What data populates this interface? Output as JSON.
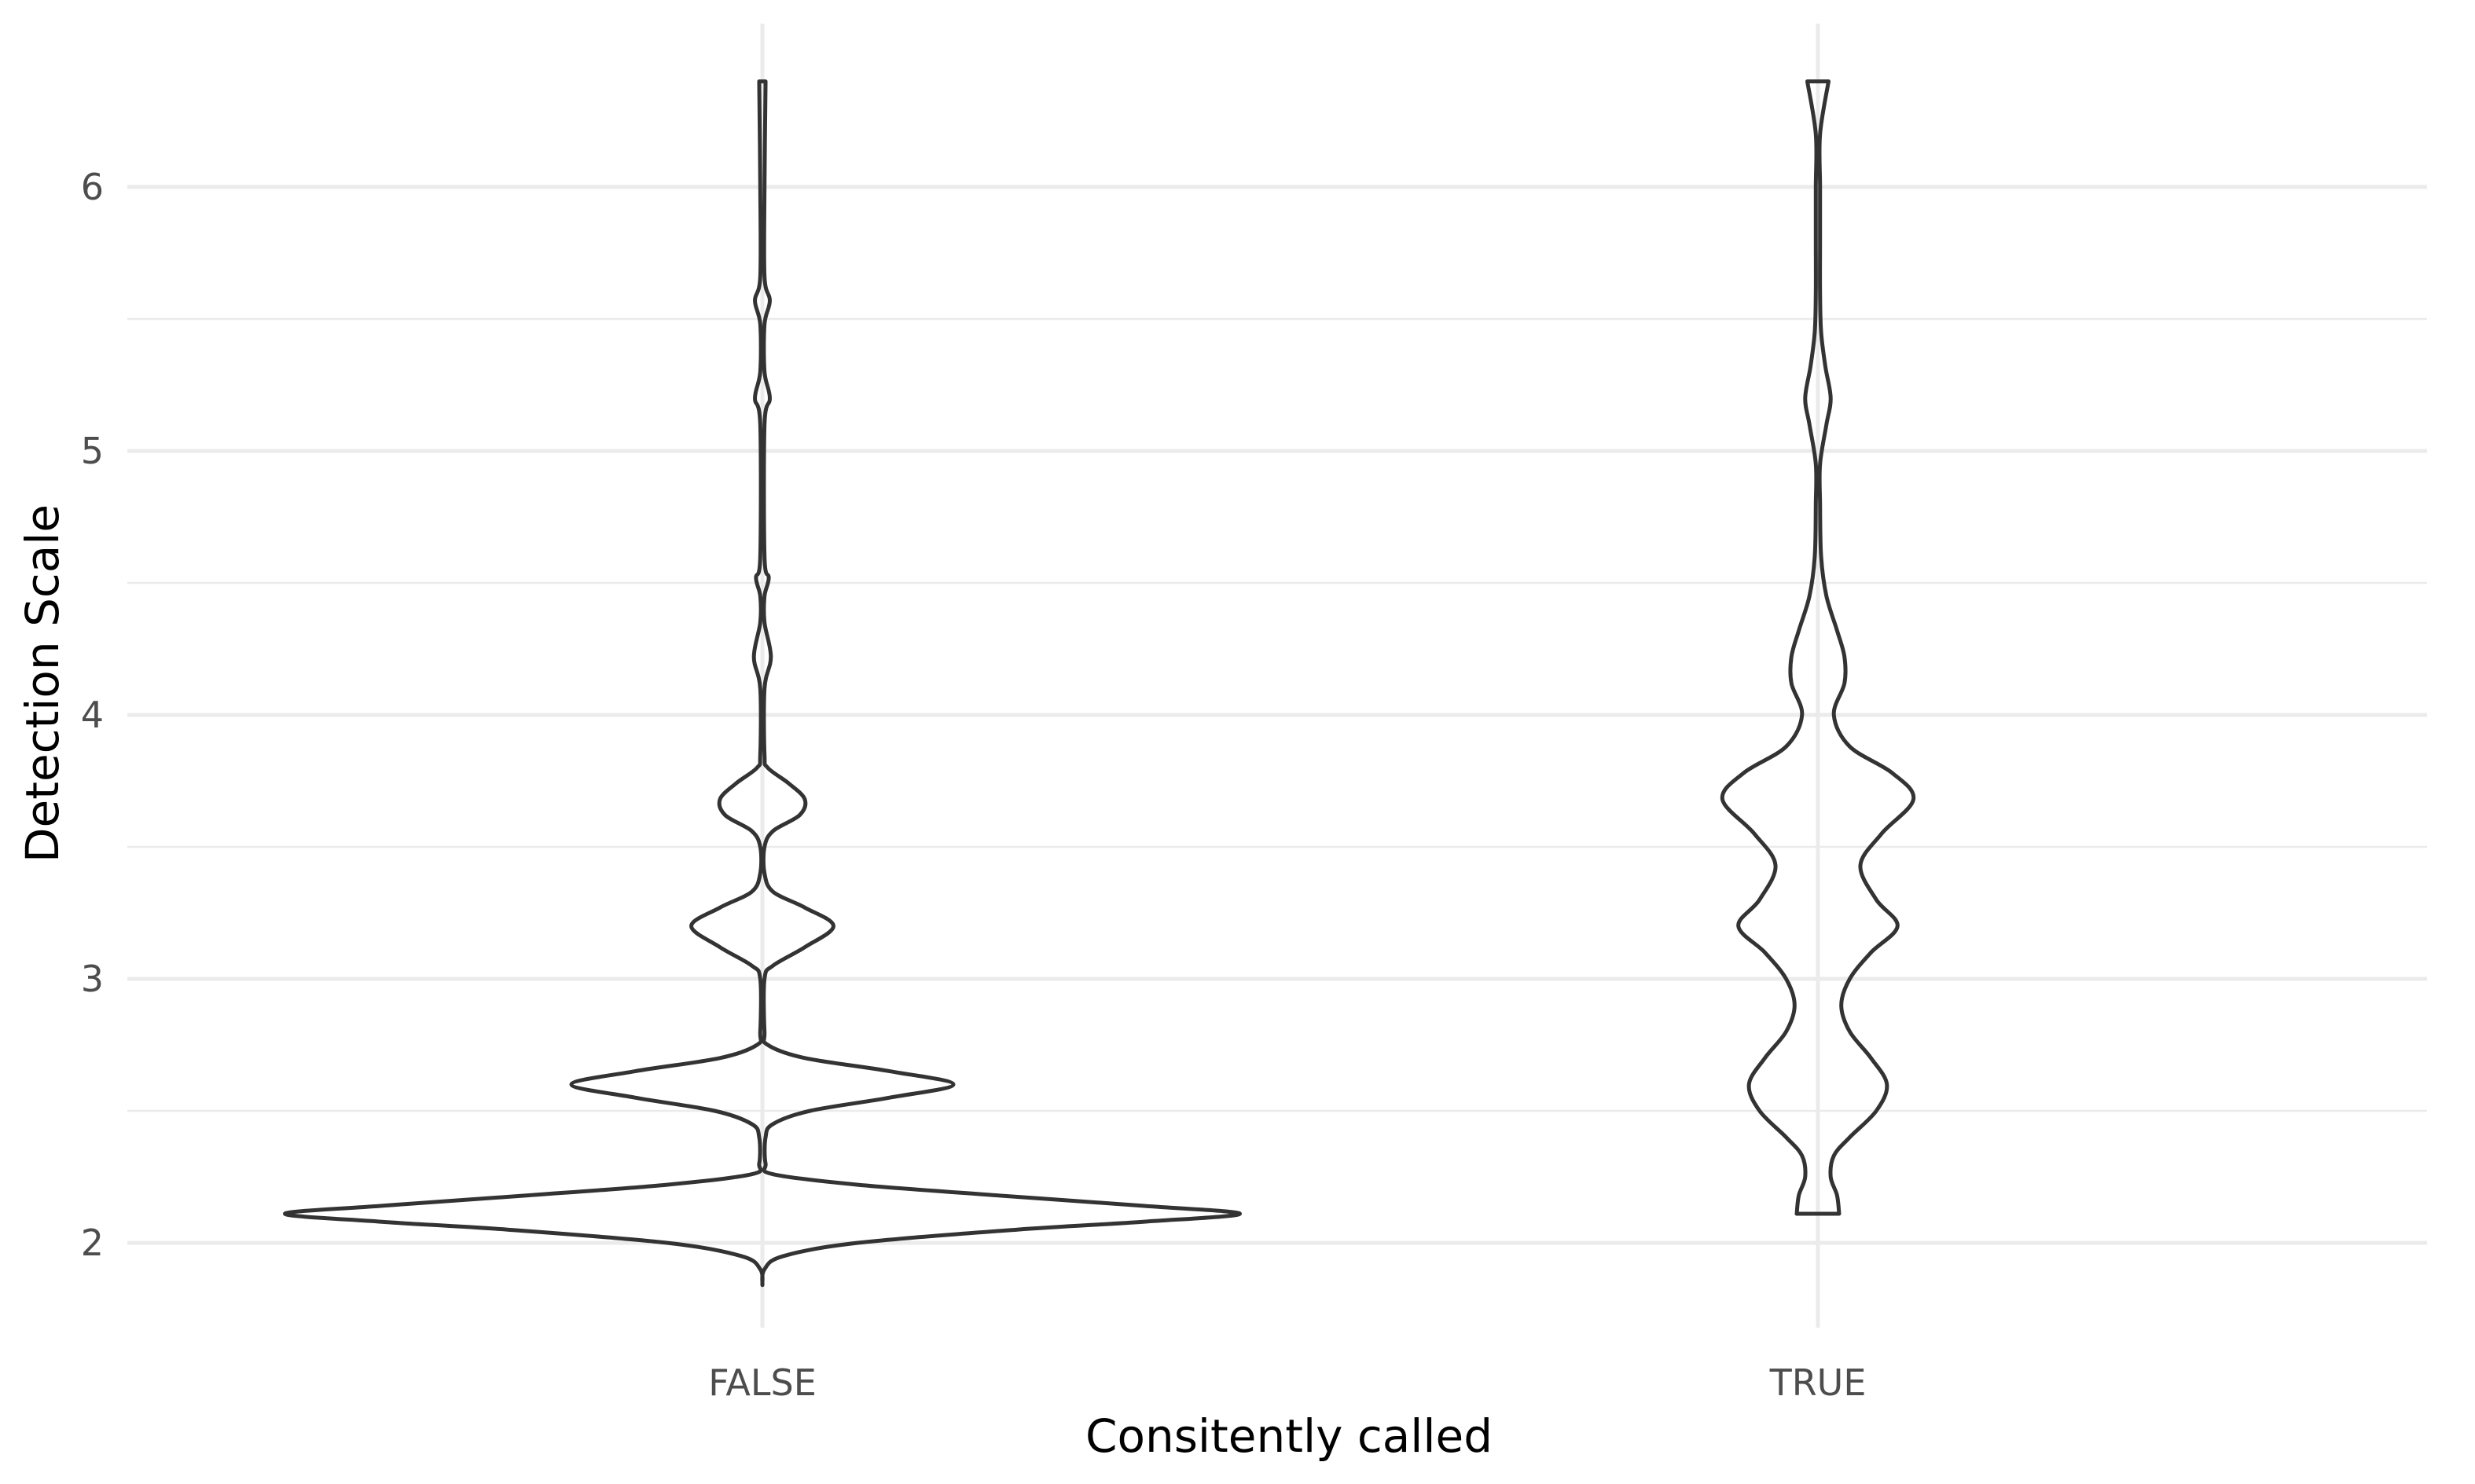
{
  "chart_data": {
    "type": "violin",
    "title": "",
    "xlabel": "Consitently called",
    "ylabel": "Detection Scale",
    "categories": [
      "FALSE",
      "TRUE"
    ],
    "ylim": [
      1.7,
      6.5
    ],
    "yticks": [
      2,
      3,
      4,
      5,
      6
    ],
    "grid": true,
    "legend": "none",
    "colors": {
      "outline": "#333333",
      "grid": "#ebebeb",
      "tick_text": "#4d4d4d",
      "title_text": "#000000"
    },
    "series": [
      {
        "category": "FALSE",
        "y_range": [
          1.84,
          6.4
        ],
        "half_width": [
          [
            1.84,
            0.0
          ],
          [
            1.9,
            0.002
          ],
          [
            1.95,
            0.02
          ],
          [
            2.0,
            0.09
          ],
          [
            2.05,
            0.24
          ],
          [
            2.08,
            0.36
          ],
          [
            2.11,
            0.45
          ],
          [
            2.14,
            0.36
          ],
          [
            2.18,
            0.22
          ],
          [
            2.22,
            0.09
          ],
          [
            2.26,
            0.01
          ],
          [
            2.3,
            0.003
          ],
          [
            2.4,
            0.003
          ],
          [
            2.45,
            0.01
          ],
          [
            2.5,
            0.045
          ],
          [
            2.55,
            0.12
          ],
          [
            2.6,
            0.18
          ],
          [
            2.65,
            0.12
          ],
          [
            2.7,
            0.04
          ],
          [
            2.75,
            0.005
          ],
          [
            2.8,
            0.002
          ],
          [
            3.0,
            0.002
          ],
          [
            3.05,
            0.01
          ],
          [
            3.12,
            0.04
          ],
          [
            3.2,
            0.067
          ],
          [
            3.27,
            0.04
          ],
          [
            3.33,
            0.01
          ],
          [
            3.4,
            0.002
          ],
          [
            3.5,
            0.002
          ],
          [
            3.56,
            0.01
          ],
          [
            3.62,
            0.035
          ],
          [
            3.68,
            0.04
          ],
          [
            3.74,
            0.025
          ],
          [
            3.8,
            0.005
          ],
          [
            3.85,
            0.002
          ],
          [
            4.1,
            0.002
          ],
          [
            4.22,
            0.008
          ],
          [
            4.35,
            0.002
          ],
          [
            4.45,
            0.002
          ],
          [
            4.52,
            0.006
          ],
          [
            4.6,
            0.002
          ],
          [
            5.1,
            0.002
          ],
          [
            5.2,
            0.007
          ],
          [
            5.3,
            0.002
          ],
          [
            5.48,
            0.002
          ],
          [
            5.57,
            0.007
          ],
          [
            5.66,
            0.002
          ],
          [
            6.0,
            0.002
          ],
          [
            6.4,
            0.003
          ]
        ]
      },
      {
        "category": "TRUE",
        "y_range": [
          2.11,
          6.4
        ],
        "half_width": [
          [
            2.11,
            0.02
          ],
          [
            2.18,
            0.018
          ],
          [
            2.25,
            0.012
          ],
          [
            2.33,
            0.015
          ],
          [
            2.4,
            0.03
          ],
          [
            2.5,
            0.055
          ],
          [
            2.6,
            0.065
          ],
          [
            2.7,
            0.05
          ],
          [
            2.8,
            0.03
          ],
          [
            2.9,
            0.022
          ],
          [
            3.0,
            0.03
          ],
          [
            3.1,
            0.05
          ],
          [
            3.2,
            0.075
          ],
          [
            3.3,
            0.055
          ],
          [
            3.43,
            0.04
          ],
          [
            3.55,
            0.06
          ],
          [
            3.68,
            0.09
          ],
          [
            3.78,
            0.07
          ],
          [
            3.88,
            0.03
          ],
          [
            4.0,
            0.015
          ],
          [
            4.12,
            0.025
          ],
          [
            4.22,
            0.025
          ],
          [
            4.32,
            0.018
          ],
          [
            4.45,
            0.008
          ],
          [
            4.6,
            0.003
          ],
          [
            4.8,
            0.002
          ],
          [
            4.95,
            0.002
          ],
          [
            5.1,
            0.008
          ],
          [
            5.2,
            0.012
          ],
          [
            5.32,
            0.007
          ],
          [
            5.45,
            0.003
          ],
          [
            5.6,
            0.002
          ],
          [
            5.8,
            0.002
          ],
          [
            6.0,
            0.002
          ],
          [
            6.2,
            0.002
          ],
          [
            6.4,
            0.01
          ]
        ]
      }
    ]
  }
}
